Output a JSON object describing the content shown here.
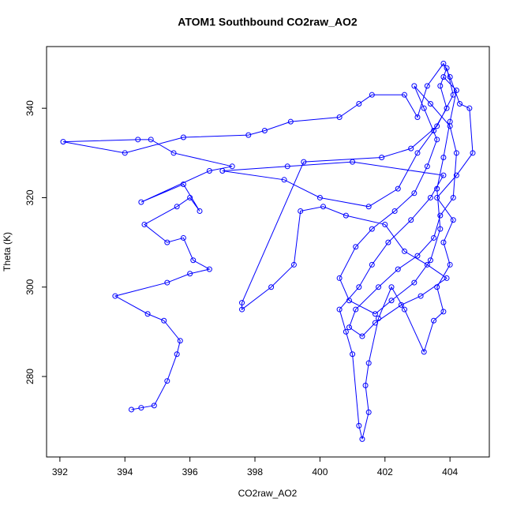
{
  "chart_data": {
    "type": "line",
    "title": "ATOM1 Southbound CO2raw_AO2",
    "x_label": "CO2raw_AO2",
    "y_label": "Theta (K)",
    "color": "#0000ff",
    "markers": true,
    "grid": false,
    "xlim": [
      391.59,
      405.21
    ],
    "ylim": [
      262.0,
      353.8
    ],
    "xticks": [
      392,
      394,
      396,
      398,
      400,
      402,
      404
    ],
    "yticks": [
      280,
      300,
      320,
      340
    ],
    "x": [
      394.2,
      394.5,
      394.9,
      395.3,
      395.6,
      395.7,
      395.2,
      394.7,
      393.7,
      395.3,
      396.0,
      396.6,
      396.1,
      395.8,
      395.3,
      394.6,
      395.6,
      396.0,
      396.3,
      395.8,
      394.5,
      396.6,
      397.3,
      395.5,
      394.8,
      394.4,
      392.1,
      394.0,
      395.8,
      397.8,
      398.3,
      399.1,
      400.6,
      401.2,
      401.6,
      402.6,
      403.0,
      403.3,
      403.8,
      404.0,
      404.3,
      404.6,
      404.7,
      404.2,
      403.6,
      404.1,
      403.8,
      404.0,
      403.6,
      403.8,
      403.5,
      403.2,
      402.6,
      402.2,
      401.8,
      401.5,
      401.4,
      401.5,
      401.3,
      401.2,
      401.0,
      400.8,
      400.6,
      401.2,
      401.6,
      402.1,
      402.8,
      403.4,
      403.8,
      401.0,
      399.0,
      397.0,
      398.9,
      400.0,
      401.5,
      402.4,
      403.0,
      403.5,
      403.9,
      403.7,
      403.9,
      404.1,
      403.6,
      402.8,
      401.9,
      399.5,
      397.6,
      397.6,
      398.5,
      399.2,
      399.4,
      400.1,
      400.8,
      402.0,
      402.6,
      403.3,
      403.9,
      403.1,
      402.5,
      401.7,
      401.3,
      400.9,
      401.1,
      401.8,
      402.4,
      403.0,
      403.5,
      403.7,
      404.1,
      404.2,
      404.0,
      403.4,
      402.9,
      403.2,
      403.6,
      403.3,
      402.9,
      402.3,
      401.6,
      401.1,
      400.6,
      400.9,
      401.7,
      402.2,
      402.9,
      403.4,
      403.7,
      403.6,
      403.8,
      404.0,
      404.2,
      403.8
    ],
    "values": [
      272.6,
      273,
      273.5,
      279,
      285,
      288,
      292.5,
      294,
      298,
      301,
      303,
      304,
      306,
      311,
      310,
      314,
      318,
      320,
      317,
      323,
      319,
      326,
      327,
      330,
      333,
      333,
      332.5,
      330,
      333.5,
      334,
      335,
      337,
      338,
      341,
      343,
      343,
      338,
      345,
      350,
      347,
      341,
      340,
      330,
      325,
      320,
      315,
      310,
      305,
      300,
      294.5,
      292.5,
      285.5,
      295,
      300,
      293,
      283,
      278,
      272,
      266,
      269,
      285,
      290,
      295,
      300,
      305,
      310,
      315,
      320,
      325,
      328,
      327,
      326,
      324,
      320,
      318,
      322,
      330,
      335,
      340,
      345,
      349,
      343,
      336,
      331,
      329,
      328,
      296.5,
      295,
      300,
      305,
      317,
      318,
      316,
      314,
      308,
      305,
      302,
      298,
      296,
      292,
      289,
      291,
      295,
      300,
      304,
      307,
      311,
      316,
      320,
      330,
      336,
      341,
      345,
      340,
      333,
      327,
      321,
      317,
      313,
      309,
      302,
      297,
      294,
      297,
      301,
      306,
      313,
      322,
      329,
      337,
      344,
      347
    ]
  }
}
